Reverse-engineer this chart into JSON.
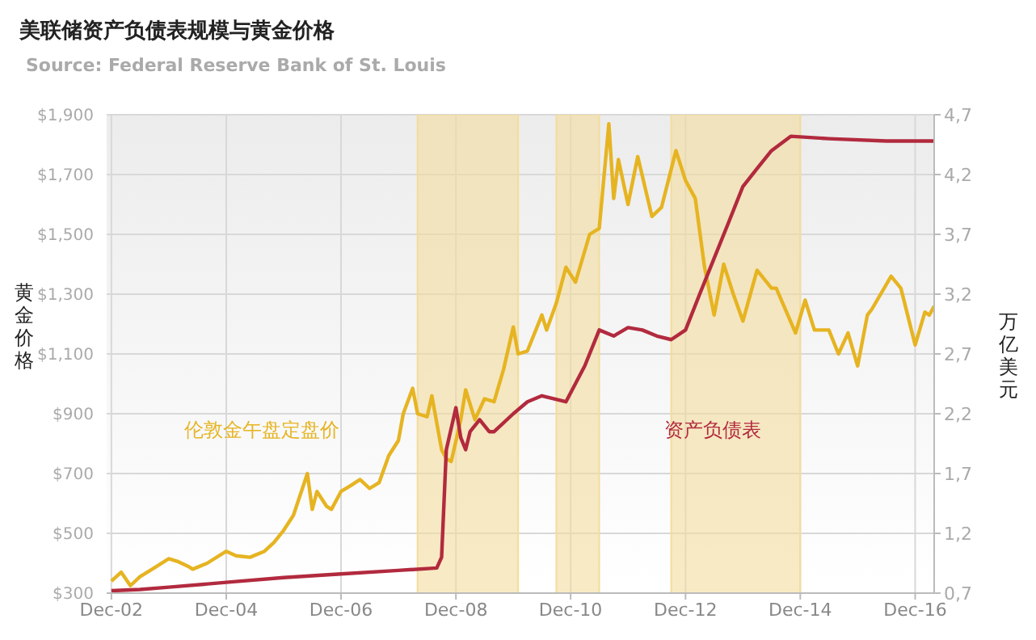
{
  "chart_data": {
    "type": "line",
    "title": "美联储资产负债表规模与黄金价格",
    "subtitle": "Source: Federal Reserve Bank of St. Louis",
    "ylabel": "黄金价格",
    "y2label": "万亿美元",
    "xlim": [
      "2002-11",
      "2017-04"
    ],
    "xticks": [
      {
        "value": "2002-12",
        "label": "Dec-02"
      },
      {
        "value": "2004-12",
        "label": "Dec-04"
      },
      {
        "value": "2006-12",
        "label": "Dec-06"
      },
      {
        "value": "2008-12",
        "label": "Dec-08"
      },
      {
        "value": "2010-12",
        "label": "Dec-10"
      },
      {
        "value": "2012-12",
        "label": "Dec-12"
      },
      {
        "value": "2014-12",
        "label": "Dec-14"
      },
      {
        "value": "2016-12",
        "label": "Dec-16"
      }
    ],
    "ylim": [
      300,
      1900
    ],
    "yticks": [
      {
        "value": 300,
        "label": "$300"
      },
      {
        "value": 500,
        "label": "$500"
      },
      {
        "value": 700,
        "label": "$700"
      },
      {
        "value": 900,
        "label": "$900"
      },
      {
        "value": 1100,
        "label": "$1,100"
      },
      {
        "value": 1300,
        "label": "$1,300"
      },
      {
        "value": 1500,
        "label": "$1,500"
      },
      {
        "value": 1700,
        "label": "$1,700"
      },
      {
        "value": 1900,
        "label": "$1,900"
      }
    ],
    "y2lim": [
      0.7,
      4.7
    ],
    "y2ticks": [
      {
        "value": 0.7,
        "label": "0,7"
      },
      {
        "value": 1.2,
        "label": "1,2"
      },
      {
        "value": 1.7,
        "label": "1,7"
      },
      {
        "value": 2.2,
        "label": "2,2"
      },
      {
        "value": 2.7,
        "label": "2,7"
      },
      {
        "value": 3.2,
        "label": "3,2"
      },
      {
        "value": 3.7,
        "label": "3,7"
      },
      {
        "value": 4.2,
        "label": "4,2"
      },
      {
        "value": 4.7,
        "label": "4,7"
      }
    ],
    "grid": true,
    "marker": "none",
    "bands": [
      {
        "axis": "x",
        "from": "2008-04",
        "to": "2010-01",
        "color": "#f3dc9c"
      },
      {
        "axis": "x",
        "from": "2010-09",
        "to": "2011-06",
        "color": "#f3dc9c"
      },
      {
        "axis": "x",
        "from": "2012-09",
        "to": "2014-12",
        "color": "#f3dc9c"
      }
    ],
    "series": [
      {
        "name": "伦敦金午盘定盘价",
        "color": "#e6b422",
        "x": [
          "2002-12",
          "2003-02",
          "2003-04",
          "2003-06",
          "2003-09",
          "2003-12",
          "2004-02",
          "2004-04",
          "2004-05",
          "2004-08",
          "2004-12",
          "2005-02",
          "2005-05",
          "2005-08",
          "2005-10",
          "2005-12",
          "2006-02",
          "2006-05",
          "2006-06",
          "2006-07",
          "2006-09",
          "2006-10",
          "2006-12",
          "2007-02",
          "2007-04",
          "2007-06",
          "2007-08",
          "2007-10",
          "2007-12",
          "2008-01",
          "2008-03",
          "2008-04",
          "2008-06",
          "2008-07",
          "2008-09",
          "2008-10",
          "2008-11",
          "2009-01",
          "2009-02",
          "2009-04",
          "2009-06",
          "2009-08",
          "2009-10",
          "2009-12",
          "2010-01",
          "2010-03",
          "2010-06",
          "2010-07",
          "2010-09",
          "2010-11",
          "2011-01",
          "2011-04",
          "2011-06",
          "2011-08",
          "2011-09",
          "2011-10",
          "2011-12",
          "2012-02",
          "2012-05",
          "2012-07",
          "2012-10",
          "2012-12",
          "2013-02",
          "2013-04",
          "2013-06",
          "2013-08",
          "2013-10",
          "2013-12",
          "2014-03",
          "2014-06",
          "2014-07",
          "2014-11",
          "2015-01",
          "2015-03",
          "2015-06",
          "2015-08",
          "2015-10",
          "2015-12",
          "2016-02",
          "2016-03",
          "2016-07",
          "2016-09",
          "2016-12",
          "2017-02",
          "2017-03",
          "2017-04"
        ],
        "values": [
          340,
          370,
          325,
          355,
          385,
          415,
          405,
          390,
          380,
          400,
          440,
          425,
          420,
          440,
          470,
          510,
          560,
          700,
          580,
          640,
          590,
          580,
          640,
          660,
          680,
          650,
          670,
          760,
          810,
          900,
          985,
          900,
          890,
          960,
          780,
          750,
          740,
          880,
          980,
          880,
          950,
          940,
          1050,
          1190,
          1100,
          1110,
          1230,
          1180,
          1270,
          1390,
          1340,
          1500,
          1520,
          1870,
          1620,
          1750,
          1600,
          1760,
          1560,
          1590,
          1780,
          1680,
          1620,
          1390,
          1230,
          1400,
          1300,
          1210,
          1380,
          1320,
          1320,
          1170,
          1280,
          1180,
          1180,
          1100,
          1170,
          1060,
          1230,
          1250,
          1360,
          1320,
          1130,
          1240,
          1230,
          1260
        ]
      },
      {
        "name": "资产负债表",
        "color": "#b22a3e",
        "axis": "y2",
        "x": [
          "2002-12",
          "2003-06",
          "2003-12",
          "2004-12",
          "2005-12",
          "2006-12",
          "2007-12",
          "2008-08",
          "2008-09",
          "2008-10",
          "2008-12",
          "2009-01",
          "2009-02",
          "2009-03",
          "2009-05",
          "2009-07",
          "2009-08",
          "2009-12",
          "2010-03",
          "2010-06",
          "2010-11",
          "2011-03",
          "2011-06",
          "2011-09",
          "2011-12",
          "2012-03",
          "2012-06",
          "2012-09",
          "2012-12",
          "2013-03",
          "2013-06",
          "2013-09",
          "2013-12",
          "2014-03",
          "2014-06",
          "2014-10",
          "2015-06",
          "2016-06",
          "2017-04"
        ],
        "values": [
          0.72,
          0.73,
          0.75,
          0.79,
          0.83,
          0.86,
          0.89,
          0.91,
          1.0,
          1.9,
          2.25,
          2.0,
          1.9,
          2.05,
          2.15,
          2.05,
          2.05,
          2.2,
          2.3,
          2.35,
          2.3,
          2.6,
          2.9,
          2.85,
          2.92,
          2.9,
          2.85,
          2.82,
          2.9,
          3.2,
          3.5,
          3.8,
          4.1,
          4.25,
          4.4,
          4.52,
          4.5,
          4.48,
          4.48
        ]
      }
    ]
  }
}
